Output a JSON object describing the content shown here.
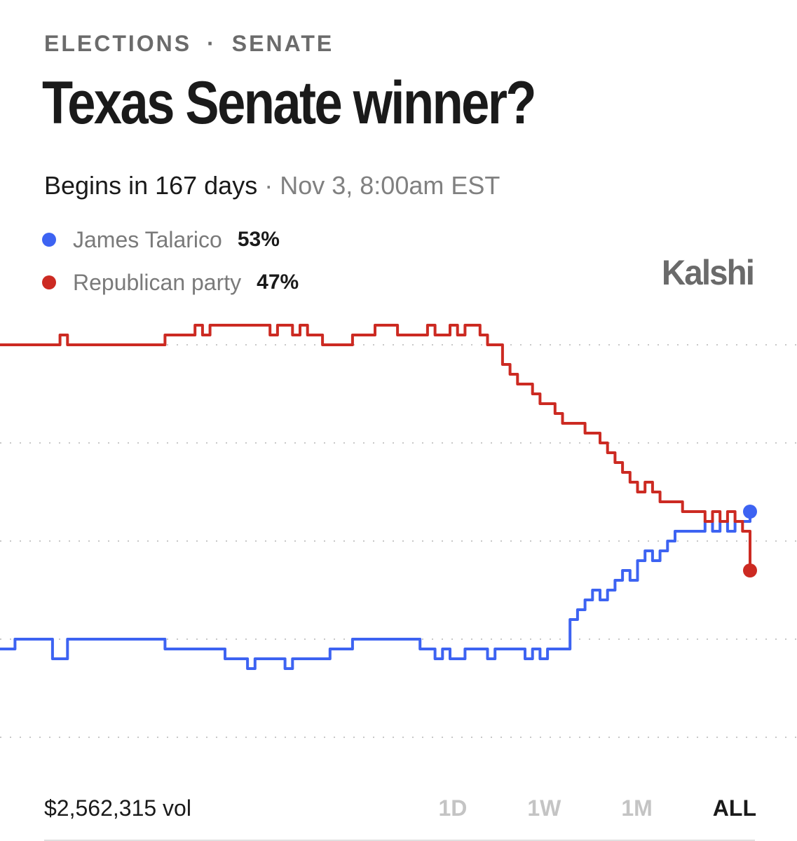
{
  "header": {
    "category": "ELECTIONS",
    "separator": "·",
    "subcategory": "SENATE",
    "title": "Texas Senate winner?",
    "begins": "Begins in 167 days",
    "date": "· Nov 3, 8:00am EST",
    "brand": "Kalshi"
  },
  "footer": {
    "volume": "$2,562,315 vol",
    "ranges": [
      "1D",
      "1W",
      "1M",
      "ALL"
    ],
    "active_range": "ALL"
  },
  "colors": {
    "blue": "#3d63f2",
    "red": "#cc2a22",
    "grid": "#c8c8c8"
  },
  "chart_data": {
    "type": "line",
    "ylim": [
      0,
      100
    ],
    "gridlines": [
      30,
      40,
      50,
      60,
      70
    ],
    "grid": "dotted",
    "x": [
      0,
      1,
      2,
      3,
      4,
      5,
      6,
      7,
      8,
      9,
      10,
      11,
      12,
      13,
      14,
      15,
      16,
      17,
      18,
      19,
      20,
      21,
      22,
      23,
      24,
      25,
      26,
      27,
      28,
      29,
      30,
      31,
      32,
      33,
      34,
      35,
      36,
      37,
      38,
      39,
      40,
      41,
      42,
      43,
      44,
      45,
      46,
      47,
      48,
      49,
      50,
      51,
      52,
      53,
      54,
      55,
      56,
      57,
      58,
      59,
      60,
      61,
      62,
      63,
      64,
      65,
      66,
      67,
      68,
      69,
      70,
      71,
      72,
      73,
      74,
      75,
      76,
      77,
      78,
      79,
      80,
      81,
      82,
      83,
      84,
      85,
      86,
      87,
      88,
      89,
      90,
      91,
      92,
      93,
      94,
      95,
      96,
      97,
      98,
      99,
      100
    ],
    "series": [
      {
        "name": "James Talarico",
        "label": "53%",
        "color": "#3d63f2",
        "values": [
          39,
          39,
          40,
          40,
          40,
          40,
          40,
          38,
          38,
          40,
          40,
          40,
          40,
          40,
          40,
          40,
          40,
          40,
          40,
          40,
          40,
          40,
          39,
          39,
          39,
          39,
          39,
          39,
          39,
          39,
          38,
          38,
          38,
          37,
          38,
          38,
          38,
          38,
          37,
          38,
          38,
          38,
          38,
          38,
          39,
          39,
          39,
          40,
          40,
          40,
          40,
          40,
          40,
          40,
          40,
          40,
          39,
          39,
          38,
          39,
          38,
          38,
          39,
          39,
          39,
          38,
          39,
          39,
          39,
          39,
          38,
          39,
          38,
          39,
          39,
          39,
          42,
          43,
          44,
          45,
          44,
          45,
          46,
          47,
          46,
          48,
          49,
          48,
          49,
          50,
          51,
          51,
          51,
          51,
          52,
          51,
          52,
          51,
          52,
          52,
          53
        ]
      },
      {
        "name": "Republican party",
        "label": "47%",
        "color": "#cc2a22",
        "values": [
          70,
          70,
          70,
          70,
          70,
          70,
          70,
          70,
          71,
          70,
          70,
          70,
          70,
          70,
          70,
          70,
          70,
          70,
          70,
          70,
          70,
          70,
          71,
          71,
          71,
          71,
          72,
          71,
          72,
          72,
          72,
          72,
          72,
          72,
          72,
          72,
          71,
          72,
          72,
          71,
          72,
          71,
          71,
          70,
          70,
          70,
          70,
          71,
          71,
          71,
          72,
          72,
          72,
          71,
          71,
          71,
          71,
          72,
          71,
          71,
          72,
          71,
          72,
          72,
          71,
          70,
          70,
          68,
          67,
          66,
          66,
          65,
          64,
          64,
          63,
          62,
          62,
          62,
          61,
          61,
          60,
          59,
          58,
          57,
          56,
          55,
          56,
          55,
          54,
          54,
          54,
          53,
          53,
          53,
          52,
          53,
          52,
          53,
          52,
          51,
          47
        ]
      }
    ]
  }
}
